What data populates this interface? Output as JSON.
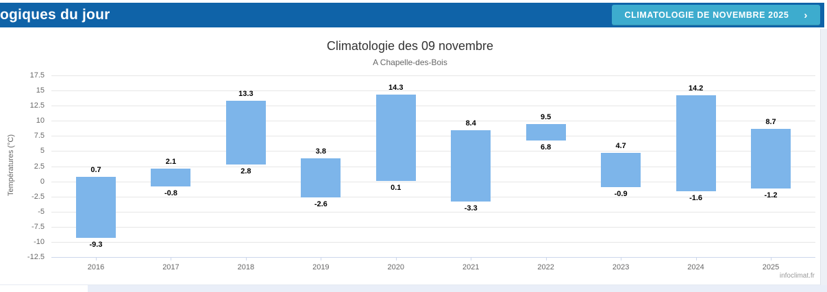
{
  "header": {
    "title": "ogiques du jour",
    "button": {
      "label": "CLIMATOLOGIE DE NOVEMBRE 2025",
      "chevron": "›"
    }
  },
  "colors": {
    "header_bg": "#0f63a8",
    "button_bg": "#3dacce",
    "bar_fill": "#7db5ea",
    "grid": "#e6e6e6",
    "axis_line": "#ccd6eb",
    "tick_label": "#666666",
    "data_label": "#000000",
    "page_bg": "#e9eef8"
  },
  "chart_data": {
    "type": "bar",
    "subtype": "columnrange",
    "title": "Climatologie des 09 novembre",
    "subtitle": "A Chapelle-des-Bois",
    "ylabel": "Températures (°C)",
    "xlabel": "",
    "categories": [
      "2016",
      "2017",
      "2018",
      "2019",
      "2020",
      "2021",
      "2022",
      "2023",
      "2024",
      "2025"
    ],
    "series": [
      {
        "name": "Températures",
        "ranges": [
          {
            "low": -9.3,
            "high": 0.7
          },
          {
            "low": -0.8,
            "high": 2.1
          },
          {
            "low": 2.8,
            "high": 13.3
          },
          {
            "low": -2.6,
            "high": 3.8
          },
          {
            "low": 0.1,
            "high": 14.3
          },
          {
            "low": -3.3,
            "high": 8.4
          },
          {
            "low": 6.8,
            "high": 9.5
          },
          {
            "low": -0.9,
            "high": 4.7
          },
          {
            "low": -1.6,
            "high": 14.2
          },
          {
            "low": -1.2,
            "high": 8.7
          }
        ]
      }
    ],
    "ylim": [
      -12.5,
      17.5
    ],
    "ytick_step": 2.5,
    "grid": true,
    "legend_position": "none",
    "credit": "infoclimat.fr"
  }
}
